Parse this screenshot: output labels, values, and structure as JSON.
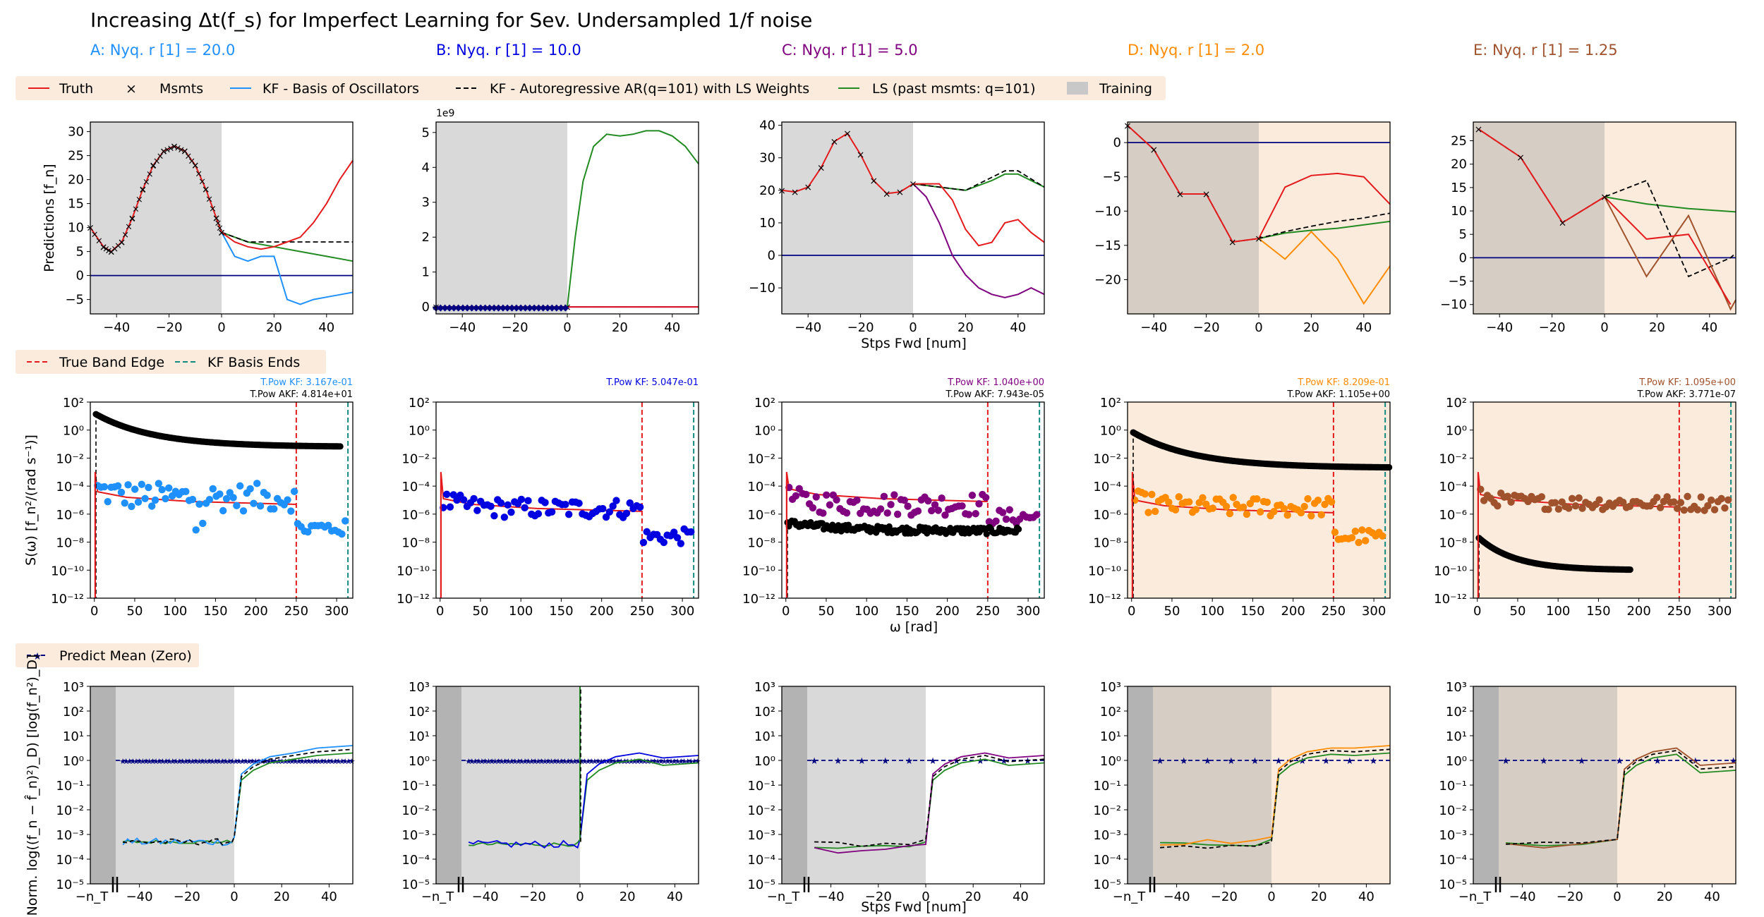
{
  "title": "Increasing Δt(f_s) for Imperfect Learning for Sev. Undersampled  1/f noise",
  "colors": {
    "truth": "#e41a1c",
    "kf_af": "#000000",
    "ls": "#228b22",
    "band_edge": "#e41a1c",
    "basis_end": "#138a80",
    "mean": "#000080",
    "training": "#c8c8c8",
    "tint": "#faebdc"
  },
  "legends": {
    "top": [
      "Truth",
      "Msmts",
      "KF - Basis of Oscillators",
      "KF - Autoregressive AR(q=101) with LS Weights",
      "LS (past msmts: q=101)",
      "Training"
    ],
    "middle": [
      "True Band Edge",
      "KF Basis Ends"
    ],
    "bottom": [
      "Predict Mean (Zero)"
    ]
  },
  "axis_labels": {
    "top_y": "Predictions [f_n]",
    "top_x": "Stps Fwd [num]",
    "mid_y": "S(ω) [f_n²/(rad s⁻¹)]",
    "mid_x": "ω [rad]",
    "bot_y": "Norm. log((f_n − f̂_n)²)_D) [log(f_n²)_D]",
    "bot_x": "Stps Fwd [num]",
    "nT": "−n_T",
    "sci": "1e9"
  },
  "tick_labels": {
    "top_x": [
      "−40",
      "−20",
      "0",
      "20",
      "40"
    ],
    "mid_x": [
      "0",
      "50",
      "100",
      "150",
      "200",
      "250",
      "300"
    ],
    "bot_x": [
      "−40",
      "−20",
      "0",
      "20",
      "40"
    ],
    "mid_y": [
      "10²",
      "10⁰",
      "10⁻²",
      "10⁻⁴",
      "10⁻⁶",
      "10⁻⁸",
      "10⁻¹⁰",
      "10⁻¹²"
    ],
    "bot_y": [
      "10³",
      "10²",
      "10¹",
      "10⁰",
      "10⁻¹",
      "10⁻²",
      "10⁻³",
      "10⁻⁴",
      "10⁻⁵"
    ]
  },
  "chart_data": [
    {
      "type": "line",
      "panel": "A",
      "name": "A: Nyq. r [1] = 20.0",
      "color": "#1e90ff",
      "top": {
        "xlim": [
          -50,
          50
        ],
        "ylim": [
          -8,
          32
        ],
        "yticks": [
          "30",
          "25",
          "20",
          "15",
          "10",
          "5",
          "0",
          "−5"
        ],
        "ytick_vals": [
          30,
          25,
          20,
          15,
          10,
          5,
          0,
          -5
        ],
        "truth": [
          [
            -50,
            10
          ],
          [
            -45,
            6
          ],
          [
            -42,
            5
          ],
          [
            -38,
            7
          ],
          [
            -34,
            12
          ],
          [
            -30,
            18
          ],
          [
            -26,
            23
          ],
          [
            -22,
            26
          ],
          [
            -18,
            27
          ],
          [
            -14,
            26
          ],
          [
            -10,
            23
          ],
          [
            -6,
            18
          ],
          [
            -2,
            12
          ],
          [
            0,
            9
          ],
          [
            5,
            7
          ],
          [
            10,
            6
          ],
          [
            15,
            5.5
          ],
          [
            20,
            6
          ],
          [
            25,
            7
          ],
          [
            30,
            8
          ],
          [
            35,
            11
          ],
          [
            40,
            15
          ],
          [
            45,
            20
          ],
          [
            50,
            24
          ]
        ],
        "kf": [
          [
            0,
            9
          ],
          [
            5,
            4
          ],
          [
            10,
            3
          ],
          [
            15,
            4
          ],
          [
            20,
            4
          ],
          [
            25,
            -5
          ],
          [
            30,
            -6
          ],
          [
            35,
            -5
          ],
          [
            40,
            -4.5
          ],
          [
            45,
            -4
          ],
          [
            50,
            -3.5
          ]
        ],
        "af": [
          [
            0,
            9
          ],
          [
            10,
            7
          ],
          [
            20,
            7
          ],
          [
            30,
            7
          ],
          [
            40,
            7
          ],
          [
            50,
            7
          ]
        ],
        "ls": [
          [
            0,
            9
          ],
          [
            10,
            7
          ],
          [
            20,
            6
          ],
          [
            30,
            5
          ],
          [
            40,
            4
          ],
          [
            50,
            3
          ]
        ]
      },
      "mid": {
        "tpow_kf": "T.Pow KF: 3.167e-01",
        "tpow_akf": "T.Pow AKF: 4.814e+01",
        "black": {
          "start": 1.2,
          "end": -1.2,
          "xmax": 305
        },
        "dots": {
          "level": -4.8,
          "spread": 1.0,
          "edge_level": -7.0
        },
        "trace_level": -5.2
      },
      "bot": {
        "kf_level": -3.3,
        "af_level": -3.3,
        "ls_level": -3.3,
        "after": [
          0.1,
          0.5
        ]
      }
    },
    {
      "type": "line",
      "panel": "B",
      "name": "B: Nyq. r [1] = 10.0",
      "color": "#0000e0",
      "top": {
        "xlim": [
          -50,
          50
        ],
        "ylim": [
          -0.2,
          5.3
        ],
        "yticks": [
          "5",
          "4",
          "3",
          "2",
          "1",
          "0"
        ],
        "ytick_vals": [
          5,
          4,
          3,
          2,
          1,
          0
        ],
        "truth": [
          [
            -50,
            0
          ],
          [
            0,
            0
          ],
          [
            50,
            0
          ]
        ],
        "kf": [
          [
            -50,
            0
          ],
          [
            0,
            0
          ],
          [
            50,
            0
          ]
        ],
        "af": [
          [
            -50,
            0
          ],
          [
            0,
            0
          ],
          [
            50,
            0
          ]
        ],
        "ls": [
          [
            0,
            0
          ],
          [
            3,
            2
          ],
          [
            6,
            3.6
          ],
          [
            10,
            4.6
          ],
          [
            15,
            4.95
          ],
          [
            20,
            4.9
          ],
          [
            25,
            4.95
          ],
          [
            30,
            5.05
          ],
          [
            35,
            5.05
          ],
          [
            40,
            4.9
          ],
          [
            45,
            4.6
          ],
          [
            50,
            4.1
          ]
        ]
      },
      "mid": {
        "tpow_kf": "T.Pow KF: 5.047e-01",
        "tpow_akf": "",
        "black": null,
        "dots": {
          "level": -5.6,
          "spread": 0.7,
          "edge_level": -7.6
        },
        "trace_level": -5.7
      },
      "bot": {
        "kf_level": -3.4,
        "af_level": null,
        "ls_level": -3.4,
        "after": [
          0.1,
          0.1
        ]
      }
    },
    {
      "type": "line",
      "panel": "C",
      "name": "C: Nyq. r [1] = 5.0",
      "color": "#800080",
      "top": {
        "xlim": [
          -50,
          50
        ],
        "ylim": [
          -18,
          41
        ],
        "yticks": [
          "40",
          "30",
          "20",
          "10",
          "0",
          "−10"
        ],
        "ytick_vals": [
          40,
          30,
          20,
          10,
          0,
          -10
        ],
        "truth": [
          [
            -50,
            20
          ],
          [
            -45,
            19.5
          ],
          [
            -40,
            21
          ],
          [
            -35,
            27
          ],
          [
            -30,
            35
          ],
          [
            -25,
            37.5
          ],
          [
            -20,
            31
          ],
          [
            -15,
            23
          ],
          [
            -10,
            19
          ],
          [
            -5,
            19.5
          ],
          [
            0,
            22
          ],
          [
            5,
            22
          ],
          [
            10,
            22
          ],
          [
            15,
            17
          ],
          [
            20,
            8
          ],
          [
            25,
            3
          ],
          [
            30,
            4
          ],
          [
            35,
            10
          ],
          [
            40,
            11
          ],
          [
            45,
            7
          ],
          [
            50,
            4
          ]
        ],
        "kf": [
          [
            0,
            22
          ],
          [
            5,
            18
          ],
          [
            10,
            10
          ],
          [
            15,
            0
          ],
          [
            20,
            -6
          ],
          [
            25,
            -10
          ],
          [
            30,
            -12
          ],
          [
            35,
            -13
          ],
          [
            40,
            -12
          ],
          [
            45,
            -10
          ],
          [
            50,
            -12
          ]
        ],
        "af": [
          [
            0,
            22
          ],
          [
            10,
            21
          ],
          [
            20,
            20
          ],
          [
            30,
            24
          ],
          [
            35,
            26
          ],
          [
            40,
            26
          ],
          [
            50,
            21
          ]
        ],
        "ls": [
          [
            0,
            22
          ],
          [
            10,
            21
          ],
          [
            20,
            20
          ],
          [
            30,
            23
          ],
          [
            35,
            25
          ],
          [
            40,
            25
          ],
          [
            50,
            21
          ]
        ]
      },
      "mid": {
        "tpow_kf": "T.Pow KF: 1.040e+00",
        "tpow_akf": "T.Pow AKF: 7.943e-05",
        "black": {
          "start": -6.6,
          "end": -7.2,
          "xmax": 290
        },
        "dots": {
          "level": -5.3,
          "spread": 0.8,
          "edge_level": -6.2
        },
        "trace_level": -5.0
      },
      "bot": {
        "kf_level": -3.6,
        "af_level": -3.4,
        "ls_level": -3.5,
        "after": [
          0.1,
          0.1
        ]
      }
    },
    {
      "type": "line",
      "panel": "D",
      "name": "D: Nyq. r [1] = 2.0",
      "color": "#ff8c00",
      "top": {
        "xlim": [
          -50,
          50
        ],
        "ylim": [
          -25,
          3
        ],
        "yticks": [
          "0",
          "−5",
          "−10",
          "−15",
          "−20"
        ],
        "ytick_vals": [
          0,
          -5,
          -10,
          -15,
          -20
        ],
        "truth": [
          [
            -50,
            2.5
          ],
          [
            -40,
            -1
          ],
          [
            -30,
            -7.5
          ],
          [
            -20,
            -7.5
          ],
          [
            -10,
            -14.5
          ],
          [
            0,
            -14
          ],
          [
            10,
            -6.5
          ],
          [
            20,
            -4.8
          ],
          [
            30,
            -4.5
          ],
          [
            40,
            -5
          ],
          [
            50,
            -9
          ]
        ],
        "kf": [
          [
            0,
            -14
          ],
          [
            10,
            -17
          ],
          [
            20,
            -13
          ],
          [
            30,
            -17
          ],
          [
            40,
            -23.5
          ],
          [
            50,
            -18
          ]
        ],
        "af": [
          [
            -50,
            2.5
          ],
          [
            -40,
            -1
          ],
          [
            -30,
            -7.5
          ],
          [
            -20,
            -7.5
          ],
          [
            -10,
            -14.5
          ],
          [
            0,
            -14
          ],
          [
            10,
            -13
          ],
          [
            20,
            -12.2
          ],
          [
            30,
            -11.5
          ],
          [
            40,
            -11
          ],
          [
            50,
            -10.3
          ]
        ],
        "ls": [
          [
            0,
            -14
          ],
          [
            10,
            -13.2
          ],
          [
            20,
            -12.8
          ],
          [
            30,
            -12.5
          ],
          [
            40,
            -12
          ],
          [
            50,
            -11.5
          ]
        ]
      },
      "mid": {
        "tpow_kf": "T.Pow KF: 8.209e-01",
        "tpow_akf": "T.Pow AKF: 1.105e+00",
        "black": {
          "start": -0.1,
          "end": -2.7,
          "xmax": 320
        },
        "dots": {
          "level": -5.5,
          "spread": 0.7,
          "edge_level": -7.6
        },
        "trace_level": -5.8
      },
      "bot": {
        "kf_level": -3.3,
        "af_level": -3.5,
        "ls_level": -3.4,
        "after": [
          0.3,
          0.5
        ]
      }
    },
    {
      "type": "line",
      "panel": "E",
      "name": "E: Nyq. r [1] = 1.25",
      "color": "#a0522d",
      "top": {
        "xlim": [
          -50,
          50
        ],
        "ylim": [
          -12,
          29
        ],
        "yticks": [
          "25",
          "20",
          "15",
          "10",
          "5",
          "0",
          "−5",
          "−10"
        ],
        "ytick_vals": [
          25,
          20,
          15,
          10,
          5,
          0,
          -5,
          -10
        ],
        "truth": [
          [
            -48,
            27.5
          ],
          [
            -32,
            21.5
          ],
          [
            -16,
            7.5
          ],
          [
            0,
            13
          ],
          [
            16,
            4
          ],
          [
            32,
            5
          ],
          [
            48,
            -10
          ]
        ],
        "kf": [
          [
            0,
            13
          ],
          [
            16,
            -4
          ],
          [
            32,
            9
          ],
          [
            48,
            -11
          ],
          [
            50,
            -9
          ]
        ],
        "af": [
          [
            -48,
            27.5
          ],
          [
            -32,
            21.5
          ],
          [
            -16,
            7.5
          ],
          [
            0,
            13
          ],
          [
            16,
            16.5
          ],
          [
            32,
            -4
          ],
          [
            48,
            0
          ],
          [
            50,
            1
          ]
        ],
        "ls": [
          [
            0,
            13
          ],
          [
            16,
            11.5
          ],
          [
            32,
            10.5
          ],
          [
            50,
            9.8
          ]
        ]
      },
      "mid": {
        "tpow_kf": "T.Pow KF: 1.095e+00",
        "tpow_akf": "T.Pow AKF: 3.771e-07",
        "black": {
          "start": -7.6,
          "end": -10.0,
          "xmax": 190
        },
        "dots": {
          "level": -5.2,
          "spread": 0.5,
          "edge_level": -5.2
        },
        "trace_level": -5.4
      },
      "bot": {
        "kf_level": -3.4,
        "af_level": -3.4,
        "ls_level": -3.4,
        "after": [
          0.3,
          -0.2
        ]
      }
    }
  ]
}
